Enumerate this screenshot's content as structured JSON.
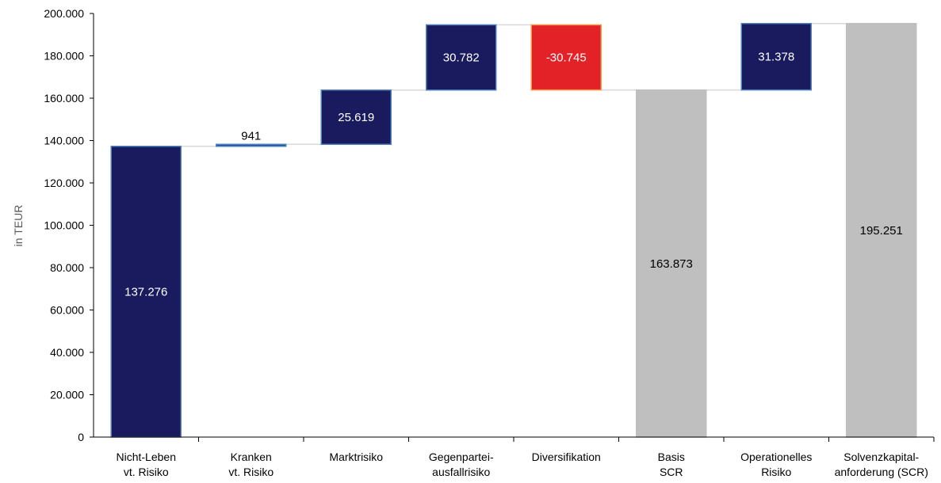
{
  "chart_data": {
    "type": "bar",
    "subtype": "waterfall",
    "title": "",
    "ylabel": "in TEUR",
    "ylim": [
      0,
      200000
    ],
    "yticks": [
      0,
      20000,
      40000,
      60000,
      80000,
      100000,
      120000,
      140000,
      160000,
      180000,
      200000
    ],
    "ytick_labels": [
      "0",
      "20.000",
      "40.000",
      "60.000",
      "80.000",
      "100.000",
      "120.000",
      "140.000",
      "160.000",
      "180.000",
      "200.000"
    ],
    "grid": false,
    "legend": "none",
    "bars": [
      {
        "category": [
          "Nicht-Leben",
          "vt. Risiko"
        ],
        "start": 0,
        "end": 137276,
        "label": "137.276",
        "kind": "increase"
      },
      {
        "category": [
          "Kranken",
          "vt. Risiko"
        ],
        "start": 137276,
        "end": 138217,
        "label": "941",
        "kind": "increase"
      },
      {
        "category": [
          "Marktrisiko"
        ],
        "start": 138217,
        "end": 163836,
        "label": "25.619",
        "kind": "increase"
      },
      {
        "category": [
          "Gegenpartei-",
          "ausfallrisiko"
        ],
        "start": 163836,
        "end": 194618,
        "label": "30.782",
        "kind": "increase"
      },
      {
        "category": [
          "Diversifikation"
        ],
        "start": 194618,
        "end": 163873,
        "label": "-30.745",
        "kind": "decrease"
      },
      {
        "category": [
          "Basis",
          "SCR"
        ],
        "start": 0,
        "end": 163873,
        "label": "163.873",
        "kind": "total"
      },
      {
        "category": [
          "Operationelles",
          "Risiko"
        ],
        "start": 163873,
        "end": 195251,
        "label": "31.378",
        "kind": "increase"
      },
      {
        "category": [
          "Solvenzkapital-",
          "anforderung (SCR)"
        ],
        "start": 0,
        "end": 195251,
        "label": "195.251",
        "kind": "total"
      }
    ],
    "colors": {
      "increase": "#1a1a5e",
      "decrease": "#e32227",
      "total": "#bfbfbf",
      "bar_border": "#4f81bd",
      "connector": "#d9d9d9",
      "axis": "#000000"
    }
  }
}
